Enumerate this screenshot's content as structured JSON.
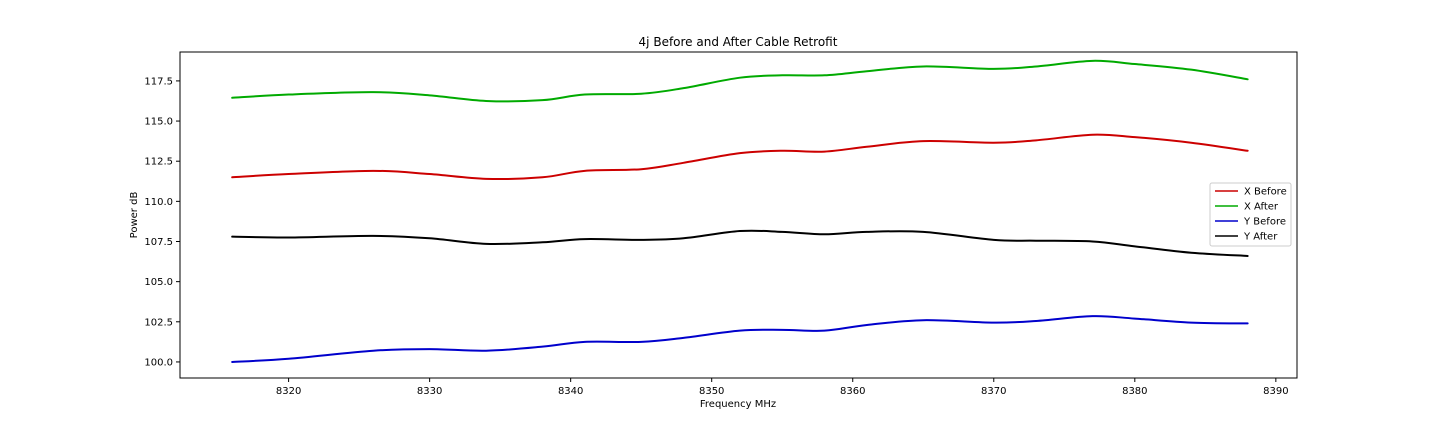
{
  "chart_data": {
    "type": "line",
    "title": "4j Before and After Cable Retrofit",
    "xlabel": "Frequency MHz",
    "ylabel": "Power dB",
    "xlim": [
      8312.3,
      8391.5
    ],
    "ylim": [
      99.0,
      119.3
    ],
    "xticks": [
      8320,
      8330,
      8340,
      8350,
      8360,
      8370,
      8380,
      8390
    ],
    "yticks": [
      100.0,
      102.5,
      105.0,
      107.5,
      110.0,
      112.5,
      115.0,
      117.5
    ],
    "grid": false,
    "legend_position": "center-right",
    "x": [
      8316,
      8320,
      8326,
      8330,
      8334,
      8338,
      8341,
      8345,
      8348,
      8352,
      8355,
      8358,
      8361,
      8365,
      8370,
      8373,
      8377,
      8380,
      8384,
      8388
    ],
    "series": [
      {
        "name": "X Before",
        "color": "#cc0000",
        "values": [
          111.5,
          111.7,
          111.9,
          111.7,
          111.4,
          111.5,
          111.9,
          112.0,
          112.4,
          113.0,
          113.15,
          113.1,
          113.4,
          113.75,
          113.65,
          113.8,
          114.15,
          114.0,
          113.65,
          113.15
        ]
      },
      {
        "name": "X After",
        "color": "#00aa00",
        "values": [
          116.45,
          116.65,
          116.8,
          116.6,
          116.25,
          116.3,
          116.65,
          116.7,
          117.05,
          117.7,
          117.85,
          117.85,
          118.1,
          118.4,
          118.25,
          118.4,
          118.75,
          118.55,
          118.2,
          117.6
        ]
      },
      {
        "name": "Y Before",
        "color": "#0000cc",
        "values": [
          100.0,
          100.2,
          100.7,
          100.8,
          100.7,
          100.95,
          101.25,
          101.25,
          101.5,
          101.95,
          102.0,
          101.95,
          102.3,
          102.6,
          102.45,
          102.55,
          102.85,
          102.7,
          102.45,
          102.4
        ]
      },
      {
        "name": "Y After",
        "color": "#000000",
        "values": [
          107.8,
          107.75,
          107.85,
          107.7,
          107.35,
          107.45,
          107.65,
          107.6,
          107.7,
          108.15,
          108.1,
          107.95,
          108.1,
          108.1,
          107.6,
          107.55,
          107.5,
          107.2,
          106.8,
          106.6
        ]
      }
    ]
  }
}
